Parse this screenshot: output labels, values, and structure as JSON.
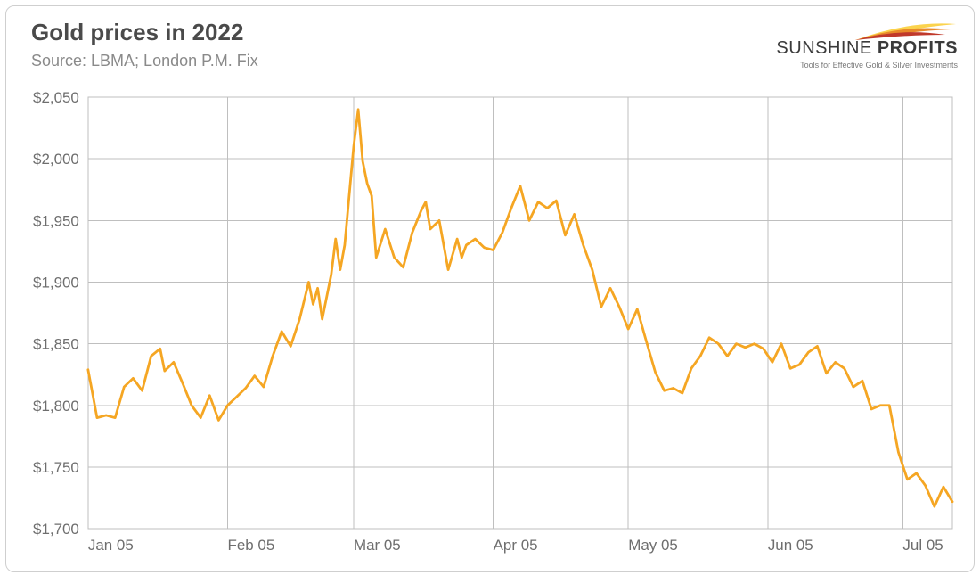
{
  "header": {
    "title": "Gold prices in 2022",
    "source": "Source: LBMA; London P.M. Fix"
  },
  "logo": {
    "thin": "SUNSHINE",
    "bold": "PROFITS",
    "tagline": "Tools for Effective Gold & Silver Investments",
    "swoosh_colors": [
      "#fbd34d",
      "#e88a2a",
      "#c0392b"
    ]
  },
  "chart": {
    "type": "line",
    "background_color": "#ffffff",
    "grid_color": "#bfbfbf",
    "axis_text_color": "#6e6e6e",
    "axis_fontsize": 17,
    "series_color": "#f5a623",
    "line_width": 2.8,
    "y": {
      "min": 1700,
      "max": 2050,
      "tick_step": 50,
      "ticks": [
        1700,
        1750,
        1800,
        1850,
        1900,
        1950,
        2000,
        2050
      ],
      "tick_labels": [
        "$1,700",
        "$1,750",
        "$1,800",
        "$1,850",
        "$1,900",
        "$1,950",
        "$2,000",
        "$2,050"
      ]
    },
    "x": {
      "min": 0,
      "max": 192,
      "tick_positions": [
        0,
        31,
        59,
        90,
        120,
        151,
        181
      ],
      "tick_labels": [
        "Jan 05",
        "Feb 05",
        "Mar 05",
        "Apr 05",
        "May 05",
        "Jun 05",
        "Jul 05"
      ]
    },
    "series": [
      {
        "x": 0,
        "y": 1829
      },
      {
        "x": 2,
        "y": 1790
      },
      {
        "x": 4,
        "y": 1792
      },
      {
        "x": 6,
        "y": 1790
      },
      {
        "x": 8,
        "y": 1815
      },
      {
        "x": 10,
        "y": 1822
      },
      {
        "x": 12,
        "y": 1812
      },
      {
        "x": 14,
        "y": 1840
      },
      {
        "x": 16,
        "y": 1846
      },
      {
        "x": 17,
        "y": 1828
      },
      {
        "x": 19,
        "y": 1835
      },
      {
        "x": 21,
        "y": 1818
      },
      {
        "x": 23,
        "y": 1800
      },
      {
        "x": 25,
        "y": 1790
      },
      {
        "x": 27,
        "y": 1808
      },
      {
        "x": 29,
        "y": 1788
      },
      {
        "x": 31,
        "y": 1800
      },
      {
        "x": 33,
        "y": 1807
      },
      {
        "x": 35,
        "y": 1814
      },
      {
        "x": 37,
        "y": 1824
      },
      {
        "x": 39,
        "y": 1815
      },
      {
        "x": 41,
        "y": 1840
      },
      {
        "x": 43,
        "y": 1860
      },
      {
        "x": 45,
        "y": 1848
      },
      {
        "x": 47,
        "y": 1870
      },
      {
        "x": 49,
        "y": 1900
      },
      {
        "x": 50,
        "y": 1882
      },
      {
        "x": 51,
        "y": 1895
      },
      {
        "x": 52,
        "y": 1870
      },
      {
        "x": 54,
        "y": 1906
      },
      {
        "x": 55,
        "y": 1935
      },
      {
        "x": 56,
        "y": 1910
      },
      {
        "x": 57,
        "y": 1930
      },
      {
        "x": 58,
        "y": 1970
      },
      {
        "x": 59,
        "y": 2010
      },
      {
        "x": 60,
        "y": 2040
      },
      {
        "x": 61,
        "y": 1998
      },
      {
        "x": 62,
        "y": 1980
      },
      {
        "x": 63,
        "y": 1970
      },
      {
        "x": 64,
        "y": 1920
      },
      {
        "x": 66,
        "y": 1943
      },
      {
        "x": 68,
        "y": 1920
      },
      {
        "x": 70,
        "y": 1912
      },
      {
        "x": 72,
        "y": 1940
      },
      {
        "x": 74,
        "y": 1958
      },
      {
        "x": 75,
        "y": 1965
      },
      {
        "x": 76,
        "y": 1943
      },
      {
        "x": 78,
        "y": 1950
      },
      {
        "x": 80,
        "y": 1910
      },
      {
        "x": 82,
        "y": 1935
      },
      {
        "x": 83,
        "y": 1920
      },
      {
        "x": 84,
        "y": 1930
      },
      {
        "x": 86,
        "y": 1935
      },
      {
        "x": 88,
        "y": 1928
      },
      {
        "x": 90,
        "y": 1926
      },
      {
        "x": 92,
        "y": 1940
      },
      {
        "x": 94,
        "y": 1960
      },
      {
        "x": 96,
        "y": 1978
      },
      {
        "x": 98,
        "y": 1950
      },
      {
        "x": 100,
        "y": 1965
      },
      {
        "x": 102,
        "y": 1960
      },
      {
        "x": 104,
        "y": 1966
      },
      {
        "x": 106,
        "y": 1938
      },
      {
        "x": 108,
        "y": 1955
      },
      {
        "x": 110,
        "y": 1930
      },
      {
        "x": 112,
        "y": 1910
      },
      {
        "x": 114,
        "y": 1880
      },
      {
        "x": 116,
        "y": 1895
      },
      {
        "x": 118,
        "y": 1880
      },
      {
        "x": 120,
        "y": 1862
      },
      {
        "x": 122,
        "y": 1878
      },
      {
        "x": 124,
        "y": 1852
      },
      {
        "x": 126,
        "y": 1827
      },
      {
        "x": 128,
        "y": 1812
      },
      {
        "x": 130,
        "y": 1814
      },
      {
        "x": 132,
        "y": 1810
      },
      {
        "x": 134,
        "y": 1830
      },
      {
        "x": 136,
        "y": 1840
      },
      {
        "x": 138,
        "y": 1855
      },
      {
        "x": 140,
        "y": 1850
      },
      {
        "x": 142,
        "y": 1840
      },
      {
        "x": 144,
        "y": 1850
      },
      {
        "x": 146,
        "y": 1847
      },
      {
        "x": 148,
        "y": 1850
      },
      {
        "x": 150,
        "y": 1846
      },
      {
        "x": 152,
        "y": 1835
      },
      {
        "x": 154,
        "y": 1850
      },
      {
        "x": 156,
        "y": 1830
      },
      {
        "x": 158,
        "y": 1833
      },
      {
        "x": 160,
        "y": 1843
      },
      {
        "x": 162,
        "y": 1848
      },
      {
        "x": 164,
        "y": 1826
      },
      {
        "x": 166,
        "y": 1835
      },
      {
        "x": 168,
        "y": 1830
      },
      {
        "x": 170,
        "y": 1815
      },
      {
        "x": 172,
        "y": 1820
      },
      {
        "x": 174,
        "y": 1797
      },
      {
        "x": 176,
        "y": 1800
      },
      {
        "x": 178,
        "y": 1800
      },
      {
        "x": 180,
        "y": 1762
      },
      {
        "x": 182,
        "y": 1740
      },
      {
        "x": 184,
        "y": 1745
      },
      {
        "x": 186,
        "y": 1735
      },
      {
        "x": 188,
        "y": 1718
      },
      {
        "x": 190,
        "y": 1734
      },
      {
        "x": 192,
        "y": 1722
      }
    ]
  }
}
